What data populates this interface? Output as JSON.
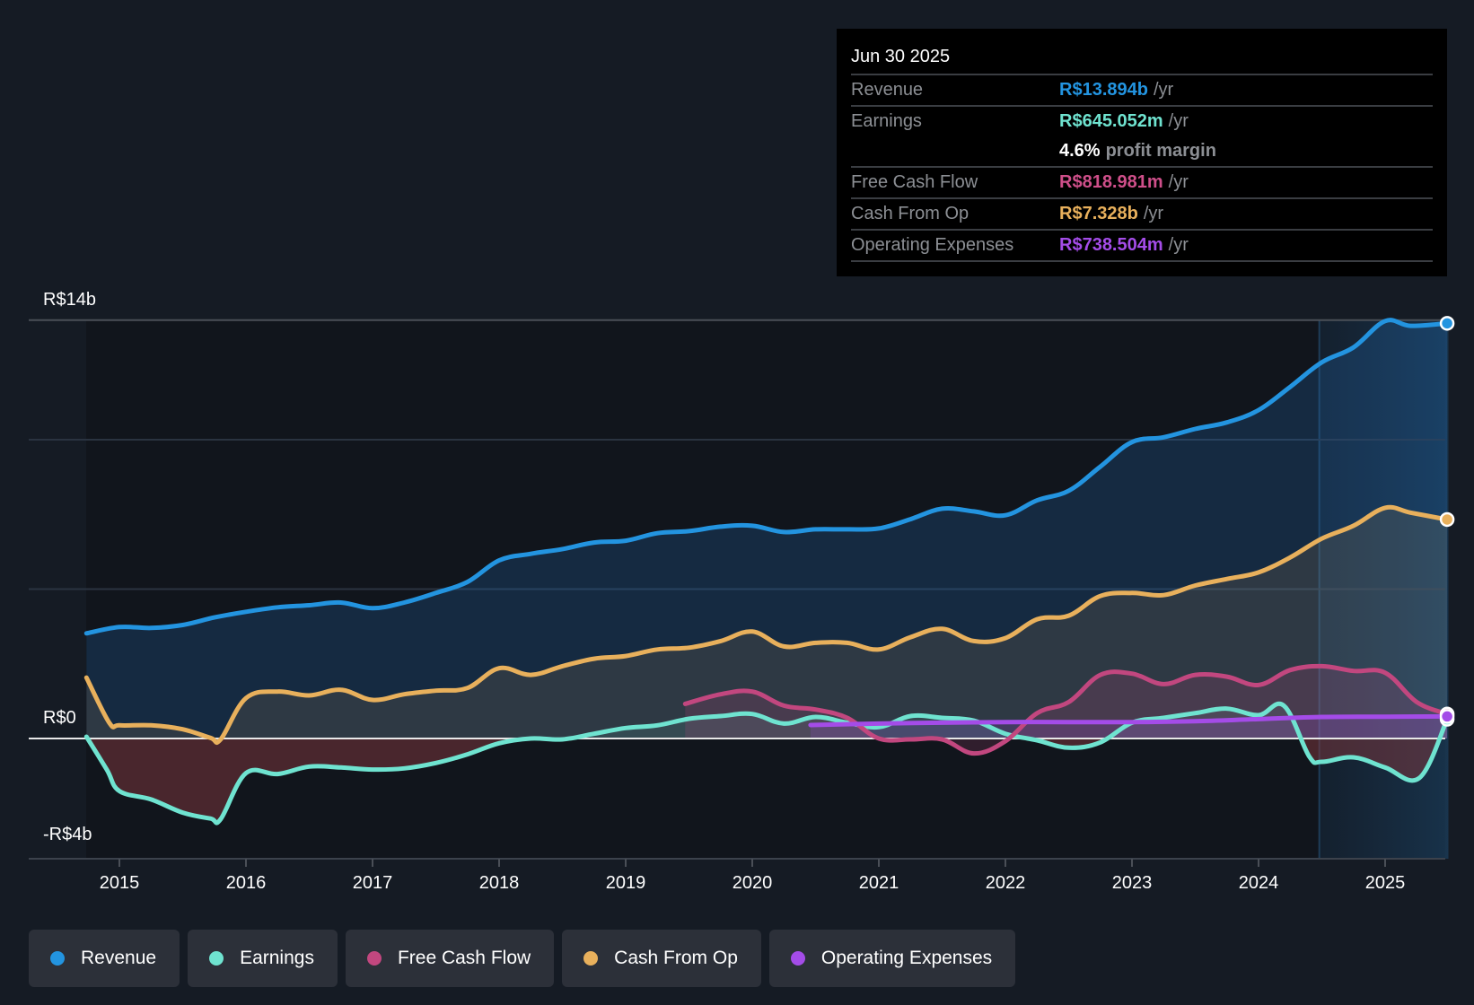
{
  "tooltip": {
    "date": "Jun 30 2025",
    "rows": [
      {
        "label": "Revenue",
        "value": "R$13.894b",
        "unit": "/yr",
        "color": "#2394e0"
      },
      {
        "label": "Earnings",
        "value": "R$645.052m",
        "unit": "/yr",
        "color": "#6fe3d0"
      },
      {
        "label": "",
        "value": "4.6%",
        "unit": "profit margin",
        "color": "#ffffff"
      },
      {
        "label": "Free Cash Flow",
        "value": "R$818.981m",
        "unit": "/yr",
        "color": "#cf4f8a"
      },
      {
        "label": "Cash From Op",
        "value": "R$7.328b",
        "unit": "/yr",
        "color": "#e8b05c"
      },
      {
        "label": "Operating Expenses",
        "value": "R$738.504m",
        "unit": "/yr",
        "color": "#a44ce8"
      }
    ]
  },
  "legend": [
    {
      "label": "Revenue",
      "color": "#2394e0"
    },
    {
      "label": "Earnings",
      "color": "#6fe3d0"
    },
    {
      "label": "Free Cash Flow",
      "color": "#c2477f"
    },
    {
      "label": "Cash From Op",
      "color": "#e8b05c"
    },
    {
      "label": "Operating Expenses",
      "color": "#a44ce8"
    }
  ],
  "chart_data": {
    "type": "line",
    "title": "",
    "xlabel": "",
    "ylabel": "",
    "currency": "R$",
    "ylim": [
      -4,
      14
    ],
    "y_tick_labels": [
      {
        "value": 14,
        "label": "R$14b"
      },
      {
        "value": 0,
        "label": "R$0"
      },
      {
        "value": -4,
        "label": "-R$4b"
      }
    ],
    "gridlines": [
      14,
      10,
      5
    ],
    "x_ticks": [
      "2015",
      "2016",
      "2017",
      "2018",
      "2019",
      "2020",
      "2021",
      "2022",
      "2023",
      "2024",
      "2025"
    ],
    "xlim": [
      2014.74,
      2025.5
    ],
    "highlight_from": 2024.48,
    "grid": true,
    "legend_position": "bottom",
    "series": [
      {
        "name": "Revenue",
        "color": "#2394e0",
        "fill": true,
        "x": [
          2014.74,
          2015.0,
          2015.25,
          2015.5,
          2015.75,
          2016.0,
          2016.25,
          2016.5,
          2016.75,
          2017.0,
          2017.25,
          2017.5,
          2017.75,
          2018.0,
          2018.25,
          2018.5,
          2018.75,
          2019.0,
          2019.25,
          2019.5,
          2019.75,
          2020.0,
          2020.25,
          2020.5,
          2020.75,
          2021.0,
          2021.25,
          2021.5,
          2021.75,
          2022.0,
          2022.25,
          2022.5,
          2022.75,
          2023.0,
          2023.25,
          2023.5,
          2023.75,
          2024.0,
          2024.25,
          2024.5,
          2024.75,
          2025.0,
          2025.2,
          2025.49
        ],
        "values": [
          3.52,
          3.73,
          3.7,
          3.8,
          4.05,
          4.24,
          4.39,
          4.46,
          4.55,
          4.36,
          4.55,
          4.87,
          5.24,
          5.96,
          6.18,
          6.34,
          6.56,
          6.62,
          6.87,
          6.94,
          7.09,
          7.12,
          6.91,
          7.0,
          7.0,
          7.03,
          7.34,
          7.69,
          7.6,
          7.47,
          7.97,
          8.29,
          9.1,
          9.92,
          10.08,
          10.36,
          10.58,
          10.99,
          11.77,
          12.59,
          13.09,
          13.97,
          13.81,
          13.894
        ]
      },
      {
        "name": "Cash From Op",
        "color": "#e8b05c",
        "fill": true,
        "x": [
          2014.74,
          2014.92,
          2015.0,
          2015.25,
          2015.5,
          2015.72,
          2015.8,
          2016.0,
          2016.25,
          2016.5,
          2016.75,
          2017.0,
          2017.25,
          2017.5,
          2017.75,
          2018.0,
          2018.25,
          2018.5,
          2018.75,
          2019.0,
          2019.25,
          2019.5,
          2019.75,
          2020.0,
          2020.25,
          2020.5,
          2020.75,
          2021.0,
          2021.25,
          2021.5,
          2021.75,
          2022.0,
          2022.25,
          2022.5,
          2022.75,
          2023.0,
          2023.25,
          2023.5,
          2023.75,
          2024.0,
          2024.25,
          2024.5,
          2024.75,
          2025.0,
          2025.2,
          2025.49
        ],
        "values": [
          2.04,
          0.53,
          0.44,
          0.44,
          0.31,
          0.02,
          -0.03,
          1.35,
          1.57,
          1.44,
          1.63,
          1.29,
          1.48,
          1.6,
          1.69,
          2.35,
          2.13,
          2.42,
          2.67,
          2.76,
          2.98,
          3.04,
          3.26,
          3.58,
          3.08,
          3.2,
          3.2,
          2.98,
          3.39,
          3.67,
          3.26,
          3.36,
          3.99,
          4.11,
          4.77,
          4.87,
          4.8,
          5.12,
          5.34,
          5.56,
          6.06,
          6.69,
          7.12,
          7.72,
          7.56,
          7.328
        ]
      },
      {
        "name": "Earnings",
        "color": "#6fe3d0",
        "fill": true,
        "x": [
          2014.74,
          2014.9,
          2015.0,
          2015.25,
          2015.5,
          2015.72,
          2015.8,
          2016.0,
          2016.25,
          2016.5,
          2016.75,
          2017.0,
          2017.25,
          2017.5,
          2017.75,
          2018.0,
          2018.25,
          2018.5,
          2018.75,
          2019.0,
          2019.25,
          2019.5,
          2019.75,
          2020.0,
          2020.25,
          2020.5,
          2020.75,
          2021.0,
          2021.25,
          2021.5,
          2021.75,
          2022.0,
          2022.25,
          2022.5,
          2022.75,
          2023.0,
          2023.25,
          2023.5,
          2023.75,
          2024.0,
          2024.2,
          2024.4,
          2024.5,
          2024.75,
          2025.0,
          2025.27,
          2025.49
        ],
        "values": [
          0.06,
          -1.04,
          -1.76,
          -2.04,
          -2.48,
          -2.68,
          -2.7,
          -1.16,
          -1.19,
          -0.94,
          -0.97,
          -1.04,
          -1.0,
          -0.82,
          -0.53,
          -0.16,
          0.0,
          -0.03,
          0.16,
          0.35,
          0.44,
          0.66,
          0.75,
          0.82,
          0.5,
          0.72,
          0.53,
          0.38,
          0.75,
          0.69,
          0.6,
          0.16,
          -0.06,
          -0.31,
          -0.13,
          0.53,
          0.69,
          0.85,
          1.0,
          0.78,
          1.1,
          -0.6,
          -0.78,
          -0.63,
          -0.97,
          -1.32,
          0.645
        ]
      },
      {
        "name": "Free Cash Flow",
        "color": "#c2477f",
        "fill": true,
        "x": [
          2019.47,
          2019.75,
          2020.0,
          2020.25,
          2020.5,
          2020.75,
          2021.0,
          2021.25,
          2021.5,
          2021.75,
          2022.0,
          2022.25,
          2022.5,
          2022.75,
          2023.0,
          2023.25,
          2023.5,
          2023.75,
          2024.0,
          2024.25,
          2024.5,
          2024.75,
          2025.0,
          2025.25,
          2025.49
        ],
        "values": [
          1.16,
          1.48,
          1.57,
          1.1,
          0.97,
          0.69,
          0.0,
          -0.03,
          -0.03,
          -0.5,
          -0.09,
          0.85,
          1.22,
          2.13,
          2.17,
          1.82,
          2.13,
          2.07,
          1.79,
          2.29,
          2.42,
          2.26,
          2.2,
          1.22,
          0.819
        ]
      },
      {
        "name": "Operating Expenses",
        "color": "#a44ce8",
        "fill": true,
        "x": [
          2020.46,
          2021.0,
          2021.5,
          2022.0,
          2022.5,
          2023.0,
          2023.5,
          2024.0,
          2024.5,
          2025.0,
          2025.49
        ],
        "values": [
          0.45,
          0.5,
          0.53,
          0.55,
          0.55,
          0.55,
          0.58,
          0.65,
          0.72,
          0.73,
          0.7385
        ]
      }
    ]
  }
}
